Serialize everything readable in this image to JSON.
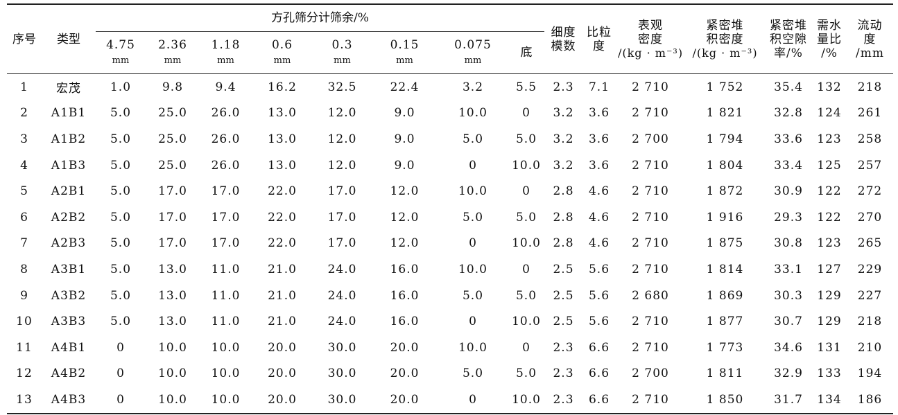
{
  "table": {
    "header": {
      "seq": "序号",
      "type": "类型",
      "sieve_group": "方孔筛分计筛余/%",
      "sieves": [
        {
          "size": "4.75",
          "unit": "mm"
        },
        {
          "size": "2.36",
          "unit": "mm"
        },
        {
          "size": "1.18",
          "unit": "mm"
        },
        {
          "size": "0.6",
          "unit": "mm"
        },
        {
          "size": "0.3",
          "unit": "mm"
        },
        {
          "size": "0.15",
          "unit": "mm"
        },
        {
          "size": "0.075",
          "unit": "mm"
        }
      ],
      "bottom": "底",
      "fineness": {
        "line1": "细度",
        "line2": "模数"
      },
      "grain_ratio": {
        "line1": "比粒",
        "line2": "度"
      },
      "apparent_density": {
        "line1": "表观",
        "line2": "密度",
        "line3": "/(kg · m⁻³)"
      },
      "bulk_density": {
        "line1": "紧密堆",
        "line2": "积密度",
        "line3": "/(kg · m⁻³)"
      },
      "void_ratio": {
        "line1": "紧密堆",
        "line2": "积空隙",
        "line3": "率/%"
      },
      "water_ratio": {
        "line1": "需水",
        "line2": "量比",
        "line3": "/%"
      },
      "fluidity": {
        "line1": "流动",
        "line2": "度",
        "line3": "/mm"
      }
    },
    "rows": [
      {
        "no": "1",
        "type": "宏茂",
        "s475": "1.0",
        "s236": "9.8",
        "s118": "9.4",
        "s06": "16.2",
        "s03": "32.5",
        "s015": "22.4",
        "s0075": "3.2",
        "bottom": "5.5",
        "fm": "2.3",
        "gr": "7.1",
        "app": "2 710",
        "bulk": "1 752",
        "void": "35.4",
        "water": "132",
        "flow": "218"
      },
      {
        "no": "2",
        "type": "A1B1",
        "s475": "5.0",
        "s236": "25.0",
        "s118": "26.0",
        "s06": "13.0",
        "s03": "12.0",
        "s015": "9.0",
        "s0075": "10.0",
        "bottom": "0",
        "fm": "3.2",
        "gr": "3.6",
        "app": "2 710",
        "bulk": "1 821",
        "void": "32.8",
        "water": "124",
        "flow": "261"
      },
      {
        "no": "3",
        "type": "A1B2",
        "s475": "5.0",
        "s236": "25.0",
        "s118": "26.0",
        "s06": "13.0",
        "s03": "12.0",
        "s015": "9.0",
        "s0075": "5.0",
        "bottom": "5.0",
        "fm": "3.2",
        "gr": "3.6",
        "app": "2 700",
        "bulk": "1 794",
        "void": "33.6",
        "water": "123",
        "flow": "258"
      },
      {
        "no": "4",
        "type": "A1B3",
        "s475": "5.0",
        "s236": "25.0",
        "s118": "26.0",
        "s06": "13.0",
        "s03": "12.0",
        "s015": "9.0",
        "s0075": "0",
        "bottom": "10.0",
        "fm": "3.2",
        "gr": "3.6",
        "app": "2 710",
        "bulk": "1 804",
        "void": "33.4",
        "water": "125",
        "flow": "257"
      },
      {
        "no": "5",
        "type": "A2B1",
        "s475": "5.0",
        "s236": "17.0",
        "s118": "17.0",
        "s06": "22.0",
        "s03": "17.0",
        "s015": "12.0",
        "s0075": "10.0",
        "bottom": "0",
        "fm": "2.8",
        "gr": "4.6",
        "app": "2 710",
        "bulk": "1 872",
        "void": "30.9",
        "water": "122",
        "flow": "272"
      },
      {
        "no": "6",
        "type": "A2B2",
        "s475": "5.0",
        "s236": "17.0",
        "s118": "17.0",
        "s06": "22.0",
        "s03": "17.0",
        "s015": "12.0",
        "s0075": "5.0",
        "bottom": "5.0",
        "fm": "2.8",
        "gr": "4.6",
        "app": "2 710",
        "bulk": "1 916",
        "void": "29.3",
        "water": "122",
        "flow": "270"
      },
      {
        "no": "7",
        "type": "A2B3",
        "s475": "5.0",
        "s236": "17.0",
        "s118": "17.0",
        "s06": "22.0",
        "s03": "17.0",
        "s015": "12.0",
        "s0075": "0",
        "bottom": "10.0",
        "fm": "2.8",
        "gr": "4.6",
        "app": "2 710",
        "bulk": "1 875",
        "void": "30.8",
        "water": "123",
        "flow": "265"
      },
      {
        "no": "8",
        "type": "A3B1",
        "s475": "5.0",
        "s236": "13.0",
        "s118": "11.0",
        "s06": "21.0",
        "s03": "24.0",
        "s015": "16.0",
        "s0075": "10.0",
        "bottom": "0",
        "fm": "2.5",
        "gr": "5.6",
        "app": "2 710",
        "bulk": "1 814",
        "void": "33.1",
        "water": "127",
        "flow": "229"
      },
      {
        "no": "9",
        "type": "A3B2",
        "s475": "5.0",
        "s236": "13.0",
        "s118": "11.0",
        "s06": "21.0",
        "s03": "24.0",
        "s015": "16.0",
        "s0075": "5.0",
        "bottom": "5.0",
        "fm": "2.5",
        "gr": "5.6",
        "app": "2 680",
        "bulk": "1 869",
        "void": "30.3",
        "water": "129",
        "flow": "227"
      },
      {
        "no": "10",
        "type": "A3B3",
        "s475": "5.0",
        "s236": "13.0",
        "s118": "11.0",
        "s06": "21.0",
        "s03": "24.0",
        "s015": "16.0",
        "s0075": "0",
        "bottom": "10.0",
        "fm": "2.5",
        "gr": "5.6",
        "app": "2 710",
        "bulk": "1 877",
        "void": "30.7",
        "water": "129",
        "flow": "218"
      },
      {
        "no": "11",
        "type": "A4B1",
        "s475": "0",
        "s236": "10.0",
        "s118": "10.0",
        "s06": "20.0",
        "s03": "30.0",
        "s015": "20.0",
        "s0075": "10.0",
        "bottom": "0",
        "fm": "2.3",
        "gr": "6.6",
        "app": "2 710",
        "bulk": "1 773",
        "void": "34.6",
        "water": "131",
        "flow": "210"
      },
      {
        "no": "12",
        "type": "A4B2",
        "s475": "0",
        "s236": "10.0",
        "s118": "10.0",
        "s06": "20.0",
        "s03": "30.0",
        "s015": "20.0",
        "s0075": "5.0",
        "bottom": "5.0",
        "fm": "2.3",
        "gr": "6.6",
        "app": "2 700",
        "bulk": "1 811",
        "void": "32.9",
        "water": "133",
        "flow": "194"
      },
      {
        "no": "13",
        "type": "A4B3",
        "s475": "0",
        "s236": "10.0",
        "s118": "10.0",
        "s06": "20.0",
        "s03": "30.0",
        "s015": "20.0",
        "s0075": "0",
        "bottom": "10.0",
        "fm": "2.3",
        "gr": "6.6",
        "app": "2 710",
        "bulk": "1 850",
        "void": "31.7",
        "water": "134",
        "flow": "186"
      }
    ]
  }
}
